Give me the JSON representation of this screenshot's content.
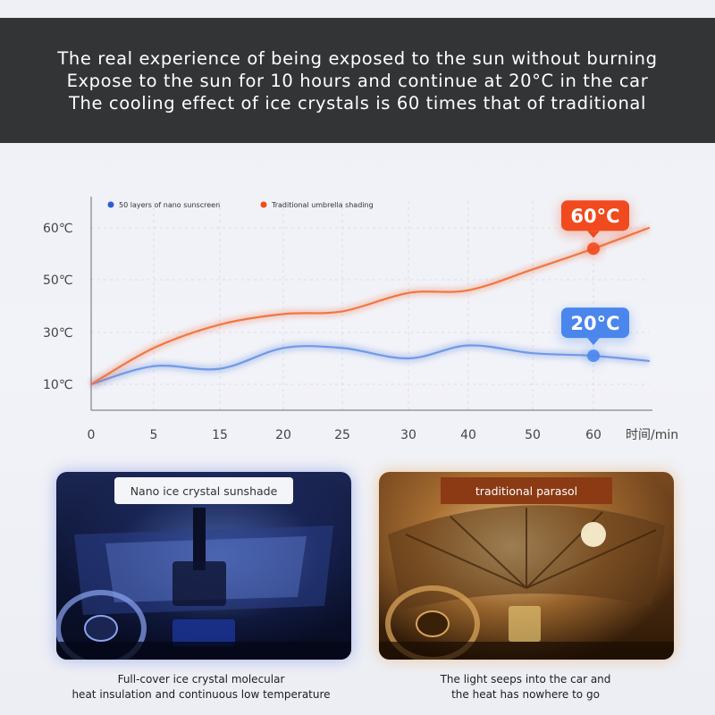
{
  "banner": {
    "line1": "The real experience of being exposed to the sun without burning",
    "line2": "Expose to the sun for 10 hours and continue at 20°C in the car",
    "line3": "The cooling effect of ice crystals is 60 times that of traditional"
  },
  "chart_data": {
    "type": "line",
    "x": [
      0,
      5,
      15,
      20,
      25,
      30,
      40,
      50,
      60,
      63
    ],
    "x_tick_labels": [
      "0",
      "5",
      "15",
      "20",
      "25",
      "30",
      "40",
      "50",
      "60"
    ],
    "x_unit_label": "时间/min",
    "y_tick_labels": [
      "60℃",
      "50℃",
      "30℃",
      "10℃"
    ],
    "y_ticks": [
      60,
      50,
      30,
      10
    ],
    "series": [
      {
        "name": "50 layers of nano sunscreen",
        "color": "#2a5fd6",
        "line_color": "#6f9ae8",
        "values": [
          10,
          17,
          16,
          24,
          24,
          20,
          25,
          22,
          21,
          19
        ]
      },
      {
        "name": "Traditional umbrella shading",
        "color": "#ee4d1a",
        "line_color": "#f07840",
        "values": [
          10,
          24,
          33,
          37,
          38,
          45,
          46,
          52,
          56,
          60
        ]
      }
    ],
    "annotations": [
      {
        "label": "60°C",
        "series": 1,
        "x": 60,
        "color": "#f04a1e"
      },
      {
        "label": "20°C",
        "series": 0,
        "x": 60,
        "color": "#4a86ec"
      }
    ],
    "legend_position": "top-left"
  },
  "panels": {
    "left": {
      "label": "Nano ice crystal sunshade",
      "caption_line1": "Full-cover ice crystal molecular",
      "caption_line2": "heat insulation and continuous low temperature"
    },
    "right": {
      "label": "traditional parasol",
      "caption_line1": "The light seeps into the car and",
      "caption_line2": "the heat has nowhere to go"
    }
  }
}
